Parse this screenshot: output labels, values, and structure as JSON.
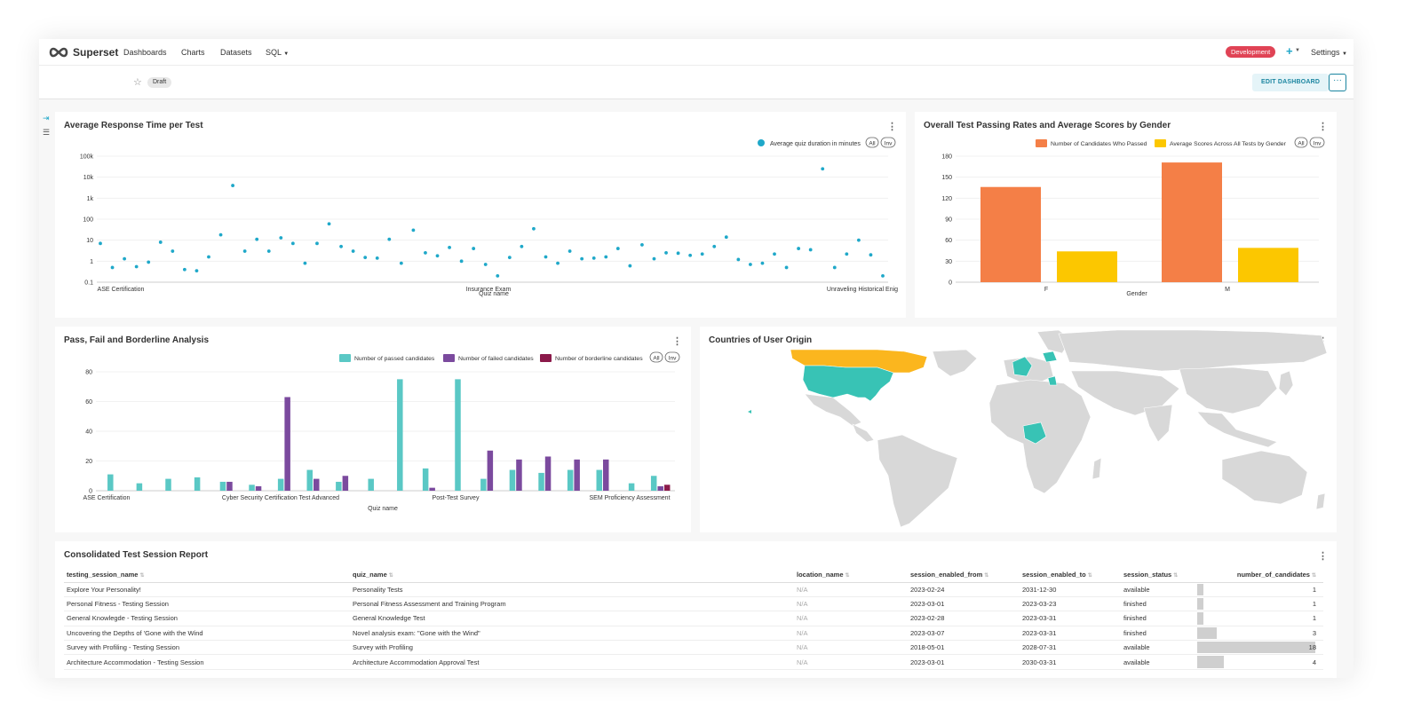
{
  "app": {
    "brand": "Superset",
    "nav": [
      "Dashboards",
      "Charts",
      "Datasets",
      "SQL"
    ],
    "environment": "Development",
    "plus": "+",
    "settings": "Settings"
  },
  "dashboard": {
    "status": "Draft",
    "edit_label": "EDIT DASHBOARD",
    "more_label": "···"
  },
  "charts": {
    "response_time": {
      "title": "Average Response Time per Test",
      "legend": "Average quiz duration in minutes",
      "all_label": "All",
      "inv_label": "Inv",
      "xlabel": "Quiz name",
      "x_ticks": [
        "ASE Certification",
        "Insurance Exam",
        "Unraveling Historical Enig"
      ],
      "y_ticks": [
        "0.1",
        "1",
        "10",
        "100",
        "1k",
        "10k",
        "100k"
      ],
      "color": "#1fa8c9"
    },
    "gender": {
      "title": "Overall Test Passing Rates and Average Scores by Gender",
      "legend": [
        "Number of Candidates Who Passed",
        "Average Scores Across All Tests by Gender"
      ],
      "all_label": "All",
      "inv_label": "Inv",
      "xlabel": "Gender",
      "y_ticks": [
        "0",
        "30",
        "60",
        "90",
        "120",
        "150",
        "180"
      ],
      "colors": [
        "#f47f47",
        "#fcc700"
      ]
    },
    "pass_fail": {
      "title": "Pass, Fail and Borderline Analysis",
      "legend": [
        "Number of passed candidates",
        "Number of failed candidates",
        "Number of borderline candidates"
      ],
      "all_label": "All",
      "inv_label": "Inv",
      "xlabel": "Quiz name",
      "x_ticks": [
        "ASE Certification",
        "Cyber Security Certification Test Advanced",
        "Post-Test Survey",
        "SEM Proficiency Assessment"
      ],
      "y_ticks": [
        "0",
        "20",
        "40",
        "60",
        "80"
      ],
      "colors": [
        "#5ac8c5",
        "#7b4a9e",
        "#8b1a4a"
      ]
    },
    "countries": {
      "title": "Countries of User Origin",
      "highlight_colors": [
        "#38c3b5",
        "#fbb61e"
      ],
      "land_color": "#d8d8d8"
    }
  },
  "chart_data": [
    {
      "type": "scatter",
      "title": "Average Response Time per Test",
      "xlabel": "Quiz name",
      "ylabel": "",
      "y_scale": "log",
      "ylim": [
        0.1,
        100000
      ],
      "series": [
        {
          "name": "Average quiz duration in minutes",
          "values": [
            7,
            0.5,
            1.3,
            0.55,
            0.9,
            8,
            3,
            0.4,
            0.35,
            1.6,
            18,
            4000,
            3,
            11,
            3,
            13,
            7,
            0.8,
            7,
            60,
            5,
            3,
            1.5,
            1.4,
            11,
            0.8,
            30,
            2.5,
            1.8,
            4.5,
            1.0,
            4,
            0.7,
            0.2,
            1.5,
            5,
            35,
            1.6,
            0.8,
            3,
            1.3,
            1.4,
            1.6,
            4,
            0.6,
            6,
            1.3,
            2.5,
            2.4,
            1.9,
            2.2,
            5,
            14,
            1.2,
            0.7,
            0.8,
            2.2,
            0.5,
            4,
            3.5,
            25000,
            0.5,
            2.2,
            10,
            2,
            0.2
          ]
        }
      ]
    },
    {
      "type": "bar",
      "title": "Overall Test Passing Rates and Average Scores by Gender",
      "categories": [
        "F",
        "M"
      ],
      "xlabel": "Gender",
      "ylim": [
        0,
        180
      ],
      "series": [
        {
          "name": "Number of Candidates Who Passed",
          "values": [
            136,
            171
          ]
        },
        {
          "name": "Average Scores Across All Tests by Gender",
          "values": [
            44,
            49
          ]
        }
      ]
    },
    {
      "type": "bar",
      "title": "Pass, Fail and Borderline Analysis",
      "xlabel": "Quiz name",
      "ylim": [
        0,
        80
      ],
      "groups": 24,
      "series": [
        {
          "name": "Number of passed candidates",
          "values": [
            11,
            5,
            8,
            9,
            6,
            4,
            8,
            14,
            6,
            8,
            75,
            15,
            75,
            8,
            14,
            12,
            14,
            14,
            5,
            10,
            null,
            null,
            null,
            null
          ]
        },
        {
          "name": "Number of failed candidates",
          "values": [
            null,
            null,
            null,
            null,
            6,
            3,
            63,
            8,
            10,
            null,
            null,
            2,
            null,
            27,
            21,
            23,
            21,
            21,
            null,
            3,
            null,
            null,
            null,
            null
          ]
        },
        {
          "name": "Number of borderline candidates",
          "values": [
            null,
            null,
            null,
            null,
            null,
            null,
            null,
            null,
            null,
            null,
            null,
            null,
            null,
            null,
            null,
            null,
            null,
            null,
            null,
            4,
            null,
            null,
            null,
            null
          ]
        }
      ]
    }
  ],
  "table": {
    "title": "Consolidated Test Session Report",
    "columns": [
      "testing_session_name",
      "quiz_name",
      "location_name",
      "session_enabled_from",
      "session_enabled_to",
      "session_status",
      "number_of_candidates"
    ],
    "rows": [
      [
        "Explore Your Personality!",
        "Personality Tests",
        "N/A",
        "2023-02-24",
        "2031-12-30",
        "available",
        "1"
      ],
      [
        "Personal Fitness - Testing Session",
        "Personal Fitness Assessment and Training Program",
        "N/A",
        "2023-03-01",
        "2023-03-23",
        "finished",
        "1"
      ],
      [
        "General Knowlegde - Testing Session",
        "General Knowledge Test",
        "N/A",
        "2023-02-28",
        "2023-03-31",
        "finished",
        "1"
      ],
      [
        "Uncovering the Depths of 'Gone with the Wind",
        "Novel analysis exam: \"Gone with the Wind\"",
        "N/A",
        "2023-03-07",
        "2023-03-31",
        "finished",
        "3"
      ],
      [
        "Survey with Profiling - Testing Session",
        "Survey with Profiling",
        "N/A",
        "2018-05-01",
        "2028-07-31",
        "available",
        "18"
      ],
      [
        "Architecture Accommodation - Testing Session",
        "Architecture Accommodation Approval Test",
        "N/A",
        "2023-03-01",
        "2030-03-31",
        "available",
        "4"
      ]
    ],
    "candidates_max": 18
  }
}
